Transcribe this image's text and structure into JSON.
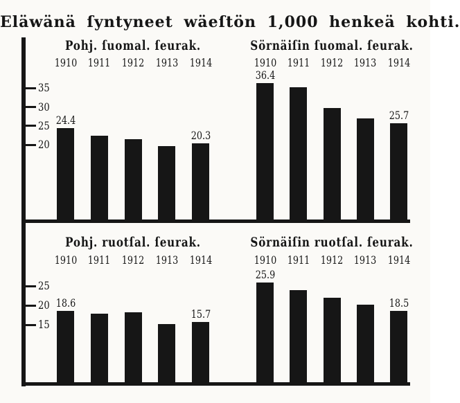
{
  "title": "Eläwänä ſyntyneet wäeſtön 1,000 henkeä kohti.",
  "colors": {
    "ink": "#161616",
    "paper": "#fbfaf7"
  },
  "chart_data": [
    {
      "type": "bar",
      "position": "top-left",
      "title": "Pohj. ſuomal. ſeurak.",
      "categories": [
        "1910",
        "1911",
        "1912",
        "1913",
        "1914"
      ],
      "values": [
        24.4,
        22.4,
        21.4,
        19.7,
        20.3
      ],
      "printed_value_labels": [
        "24.4",
        "",
        "",
        "",
        "20.3"
      ],
      "yticks": [
        35,
        30,
        25,
        20
      ],
      "ymin": 0,
      "grid": false,
      "legend": "none",
      "bar_color": "#161616"
    },
    {
      "type": "bar",
      "position": "top-right",
      "title": "Sörnäiſin ſuomal. ſeurak.",
      "categories": [
        "1910",
        "1911",
        "1912",
        "1913",
        "1914"
      ],
      "values": [
        36.4,
        35.2,
        29.7,
        27.0,
        25.7
      ],
      "printed_value_labels": [
        "36.4",
        "",
        "",
        "",
        "25.7"
      ],
      "yticks": [
        35,
        30,
        25,
        20
      ],
      "ymin": 0,
      "grid": false,
      "legend": "none",
      "bar_color": "#161616"
    },
    {
      "type": "bar",
      "position": "bottom-left",
      "title": "Pohj. ruotſal. ſeurak.",
      "categories": [
        "1910",
        "1911",
        "1912",
        "1913",
        "1914"
      ],
      "values": [
        18.6,
        17.8,
        18.3,
        15.2,
        15.7
      ],
      "printed_value_labels": [
        "18.6",
        "",
        "",
        "",
        "15.7"
      ],
      "yticks": [
        25,
        20,
        15
      ],
      "ymin": 0,
      "grid": false,
      "legend": "none",
      "bar_color": "#161616"
    },
    {
      "type": "bar",
      "position": "bottom-right",
      "title": "Sörnäiſin ruotſal. ſeurak.",
      "categories": [
        "1910",
        "1911",
        "1912",
        "1913",
        "1914"
      ],
      "values": [
        25.9,
        24.0,
        21.9,
        20.1,
        18.5
      ],
      "printed_value_labels": [
        "25.9",
        "",
        "",
        "",
        "18.5"
      ],
      "yticks": [
        25,
        20,
        15
      ],
      "ymin": 0,
      "grid": false,
      "legend": "none",
      "bar_color": "#161616"
    }
  ]
}
